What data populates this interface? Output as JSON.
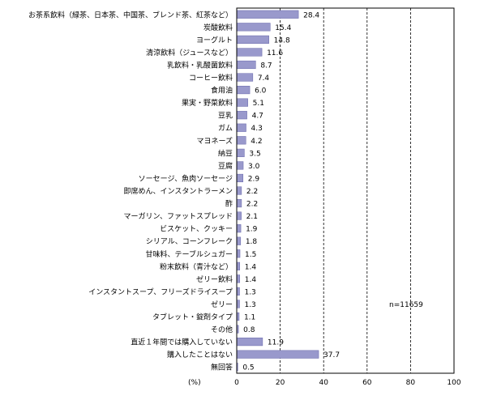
{
  "chart_data": {
    "type": "bar",
    "orientation": "horizontal",
    "categories": [
      "お茶系飲料（緑茶、日本茶、中国茶、ブレンド茶、紅茶など）",
      "炭酸飲料",
      "ヨーグルト",
      "清涼飲料（ジュースなど）",
      "乳飲料・乳酸菌飲料",
      "コーヒー飲料",
      "食用油",
      "果実・野菜飲料",
      "豆乳",
      "ガム",
      "マヨネーズ",
      "納豆",
      "豆腐",
      "ソーセージ、魚肉ソーセージ",
      "即席めん、インスタントラーメン",
      "酢",
      "マーガリン、ファットスプレッド",
      "ビスケット、クッキー",
      "シリアル、コーンフレーク",
      "甘味料、テーブルシュガー",
      "粉末飲料（青汁など）",
      "ゼリー飲料",
      "インスタントスープ、フリーズドライスープ",
      "ゼリー",
      "タブレット・錠剤タイプ",
      "その他",
      "直近１年間では購入していない",
      "購入したことはない",
      "無回答"
    ],
    "values": [
      28.4,
      15.4,
      14.8,
      11.6,
      8.7,
      7.4,
      6.0,
      5.1,
      4.7,
      4.3,
      4.2,
      3.5,
      3.0,
      2.9,
      2.2,
      2.2,
      2.1,
      1.9,
      1.8,
      1.5,
      1.4,
      1.4,
      1.3,
      1.3,
      1.1,
      0.8,
      11.9,
      37.7,
      0.5
    ],
    "value_labels": [
      "28.4",
      "15.4",
      "14.8",
      "11.6",
      "8.7",
      "7.4",
      "6.0",
      "5.1",
      "4.7",
      "4.3",
      "4.2",
      "3.5",
      "3.0",
      "2.9",
      "2.2",
      "2.2",
      "2.1",
      "1.9",
      "1.8",
      "1.5",
      "1.4",
      "1.4",
      "1.3",
      "1.3",
      "1.1",
      "0.8",
      "11.9",
      "37.7",
      "0.5"
    ],
    "xlim": [
      0,
      100
    ],
    "xticks": [
      "0",
      "20",
      "40",
      "60",
      "80",
      "100"
    ],
    "xlabel": "(%)",
    "annotation": "n=11659",
    "grid": "vertical dashed",
    "bar_color": "#9999cc",
    "bar_edge_color": "#6666aa"
  }
}
